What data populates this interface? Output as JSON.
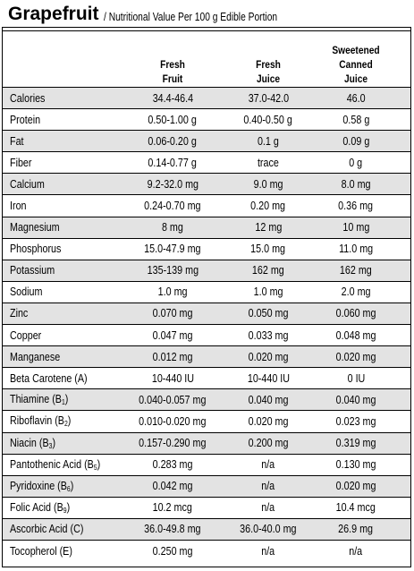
{
  "title": {
    "main": "Grapefruit",
    "subtitle": "/ Nutritional Value Per 100 g Edible Portion"
  },
  "columns": [
    {
      "lines": [
        "Fresh",
        "Fruit"
      ]
    },
    {
      "lines": [
        "Fresh",
        "Juice"
      ]
    },
    {
      "lines": [
        "Sweetened",
        "Canned",
        "Juice"
      ]
    }
  ],
  "rows": [
    {
      "name": "Calories",
      "sub": "",
      "name_suffix": "",
      "fruit": "34.4-46.4",
      "juice": "37.0-42.0",
      "canned": "46.0"
    },
    {
      "name": "Protein",
      "sub": "",
      "name_suffix": "",
      "fruit": "0.50-1.00 g",
      "juice": "0.40-0.50 g",
      "canned": "0.58 g"
    },
    {
      "name": "Fat",
      "sub": "",
      "name_suffix": "",
      "fruit": "0.06-0.20 g",
      "juice": "0.1 g",
      "canned": "0.09 g"
    },
    {
      "name": "Fiber",
      "sub": "",
      "name_suffix": "",
      "fruit": "0.14-0.77 g",
      "juice": "trace",
      "canned": "0 g"
    },
    {
      "name": "Calcium",
      "sub": "",
      "name_suffix": "",
      "fruit": "9.2-32.0 mg",
      "juice": "9.0 mg",
      "canned": "8.0 mg"
    },
    {
      "name": "Iron",
      "sub": "",
      "name_suffix": "",
      "fruit": "0.24-0.70 mg",
      "juice": "0.20 mg",
      "canned": "0.36 mg"
    },
    {
      "name": "Magnesium",
      "sub": "",
      "name_suffix": "",
      "fruit": "8 mg",
      "juice": "12 mg",
      "canned": "10 mg"
    },
    {
      "name": "Phosphorus",
      "sub": "",
      "name_suffix": "",
      "fruit": "15.0-47.9 mg",
      "juice": "15.0 mg",
      "canned": "11.0 mg"
    },
    {
      "name": "Potassium",
      "sub": "",
      "name_suffix": "",
      "fruit": "135-139 mg",
      "juice": "162 mg",
      "canned": "162 mg"
    },
    {
      "name": "Sodium",
      "sub": "",
      "name_suffix": "",
      "fruit": "1.0 mg",
      "juice": "1.0 mg",
      "canned": "2.0 mg"
    },
    {
      "name": "Zinc",
      "sub": "",
      "name_suffix": "",
      "fruit": "0.070 mg",
      "juice": "0.050 mg",
      "canned": "0.060 mg"
    },
    {
      "name": "Copper",
      "sub": "",
      "name_suffix": "",
      "fruit": "0.047 mg",
      "juice": "0.033 mg",
      "canned": "0.048 mg"
    },
    {
      "name": "Manganese",
      "sub": "",
      "name_suffix": "",
      "fruit": "0.012 mg",
      "juice": "0.020 mg",
      "canned": "0.020 mg"
    },
    {
      "name": "Beta Carotene (A)",
      "sub": "",
      "name_suffix": "",
      "fruit": "10-440 IU",
      "juice": "10-440 IU",
      "canned": "0 IU"
    },
    {
      "name": "Thiamine (B",
      "sub": "1",
      "name_suffix": ")",
      "fruit": "0.040-0.057 mg",
      "juice": "0.040 mg",
      "canned": "0.040 mg"
    },
    {
      "name": "Riboflavin (B",
      "sub": "2",
      "name_suffix": ")",
      "fruit": "0.010-0.020 mg",
      "juice": "0.020 mg",
      "canned": "0.023 mg"
    },
    {
      "name": "Niacin (B",
      "sub": "3",
      "name_suffix": ")",
      "fruit": "0.157-0.290 mg",
      "juice": "0.200 mg",
      "canned": "0.319 mg"
    },
    {
      "name": "Pantothenic Acid (B",
      "sub": "5",
      "name_suffix": ")",
      "fruit": "0.283 mg",
      "juice": "n/a",
      "canned": "0.130 mg"
    },
    {
      "name": "Pyridoxine (B",
      "sub": "6",
      "name_suffix": ")",
      "fruit": "0.042 mg",
      "juice": "n/a",
      "canned": "0.020 mg"
    },
    {
      "name": "Folic Acid (B",
      "sub": "9",
      "name_suffix": ")",
      "fruit": "10.2 mcg",
      "juice": "n/a",
      "canned": "10.4 mcg"
    },
    {
      "name": "Ascorbic Acid (C)",
      "sub": "",
      "name_suffix": "",
      "fruit": "36.0-49.8 mg",
      "juice": "36.0-40.0 mg",
      "canned": "26.9 mg"
    },
    {
      "name": "Tocopherol (E)",
      "sub": "",
      "name_suffix": "",
      "fruit": "0.250 mg",
      "juice": "n/a",
      "canned": "n/a"
    }
  ]
}
